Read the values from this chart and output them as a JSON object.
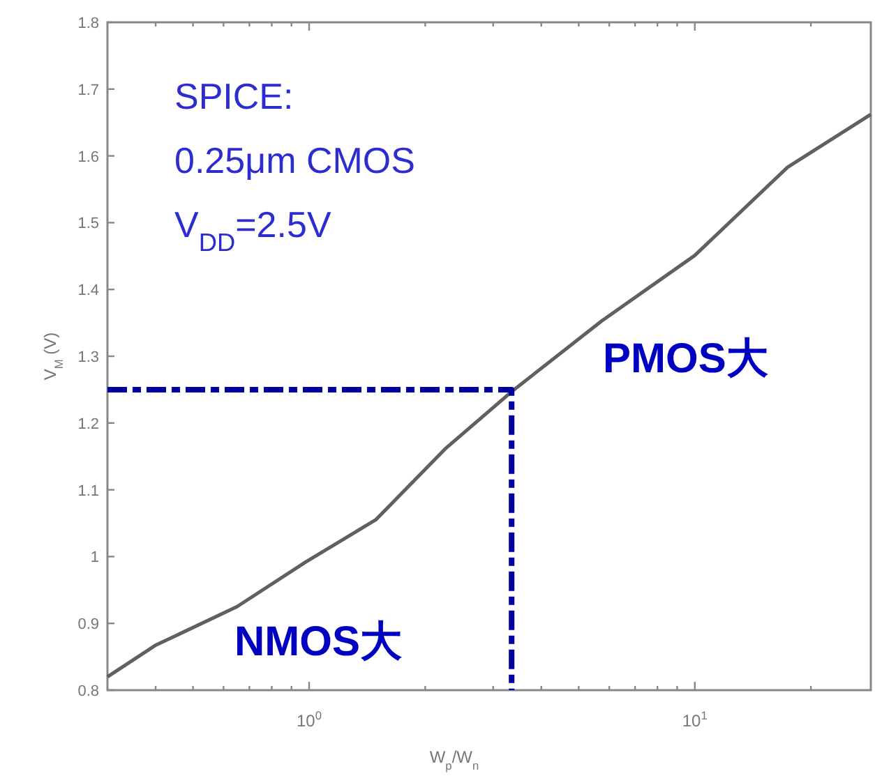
{
  "chart_data": {
    "type": "line",
    "xlabel": "W$_{p}$/W$_{n}$",
    "ylabel": "V$_{M}$ (V)",
    "log": "x",
    "xlim": [
      0.3,
      28.6
    ],
    "ylim": [
      0.8,
      1.8
    ],
    "xticks": [
      {
        "value": 0.4,
        "label": null
      },
      {
        "value": 0.5,
        "label": null
      },
      {
        "value": 0.6,
        "label": null
      },
      {
        "value": 0.7,
        "label": null
      },
      {
        "value": 0.8,
        "label": null
      },
      {
        "value": 0.9,
        "label": null
      },
      {
        "value": 1,
        "label": "10$^{0}$"
      },
      {
        "value": 2,
        "label": null
      },
      {
        "value": 3,
        "label": null
      },
      {
        "value": 4,
        "label": null
      },
      {
        "value": 5,
        "label": null
      },
      {
        "value": 6,
        "label": null
      },
      {
        "value": 7,
        "label": null
      },
      {
        "value": 8,
        "label": null
      },
      {
        "value": 9,
        "label": null
      },
      {
        "value": 10,
        "label": "10$^{1}$"
      },
      {
        "value": 20,
        "label": null
      }
    ],
    "yticks": [
      0.8,
      0.9,
      1,
      1.1,
      1.2,
      1.3,
      1.4,
      1.5,
      1.6,
      1.7,
      1.8
    ],
    "series": [
      {
        "color": "#606060",
        "x": [
          0.3,
          0.399,
          0.65,
          0.98,
          1.488,
          2.25,
          3.35,
          5.74,
          10,
          17.4,
          28.6
        ],
        "values": [
          0.82,
          0.867,
          0.925,
          0.992,
          1.055,
          1.161,
          1.247,
          1.353,
          1.451,
          1.583,
          1.662
        ]
      },
      {
        "color": "#0000a0",
        "line_style": "dashed",
        "x": [
          0.3,
          3.35,
          3.35
        ],
        "values": [
          1.25,
          1.25,
          0.8
        ]
      }
    ],
    "annotations": [
      "SPICE:",
      "0.25μm CMOS",
      "V$_{DD}$=2.5V",
      "PMOS大",
      "NMOS大"
    ]
  }
}
